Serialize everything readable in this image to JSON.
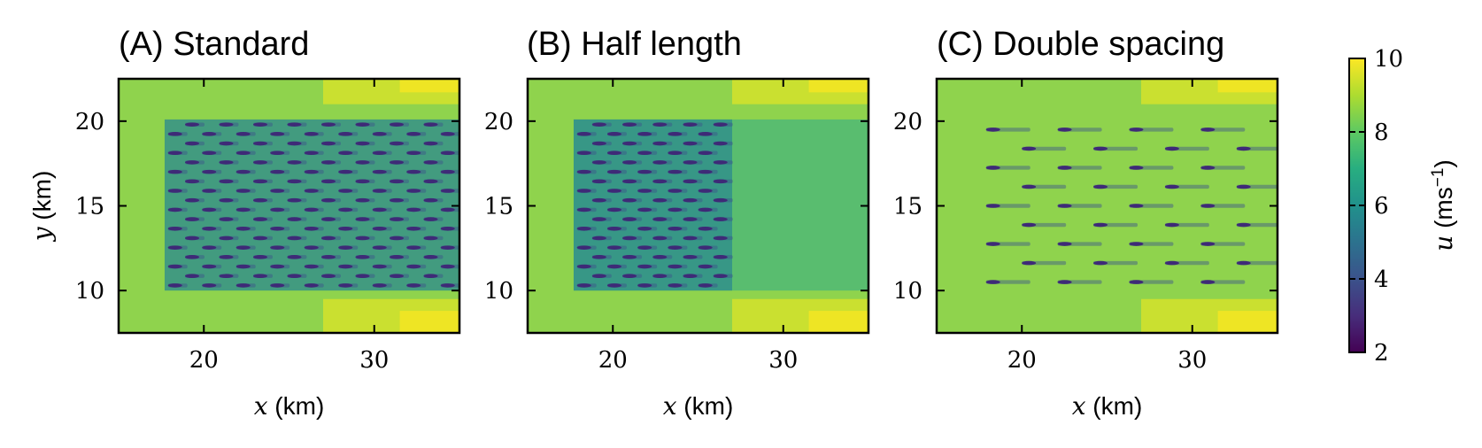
{
  "chart_data": [
    {
      "type": "heatmap",
      "title": "(A) Standard",
      "xlabel_var": "x",
      "xlabel_unit": " (km)",
      "ylabel_var": "y",
      "ylabel_unit": " (km)",
      "xlim": [
        15,
        35
      ],
      "ylim": [
        7.5,
        22.5
      ],
      "xticks": [
        20,
        30
      ],
      "yticks": [
        10,
        15,
        20
      ],
      "layout": "standard",
      "turbine_columns": 9,
      "turbine_rows": 18,
      "turbine_x_range": [
        18,
        35
      ],
      "turbine_y_range": [
        10.3,
        19.8
      ],
      "wake_recovery": "low",
      "show_ylabel": true
    },
    {
      "type": "heatmap",
      "title": "(B) Half length",
      "xlabel_var": "x",
      "xlabel_unit": " (km)",
      "ylabel_var": "",
      "ylabel_unit": "",
      "xlim": [
        15,
        35
      ],
      "ylim": [
        7.5,
        22.5
      ],
      "xticks": [
        20,
        30
      ],
      "yticks": [
        10,
        15,
        20
      ],
      "layout": "half",
      "turbine_columns": 5,
      "turbine_rows": 18,
      "turbine_x_range": [
        18,
        26
      ],
      "turbine_y_range": [
        10.3,
        19.8
      ],
      "wake_recovery": "medium",
      "show_ylabel": false
    },
    {
      "type": "heatmap",
      "title": "(C) Double spacing",
      "xlabel_var": "x",
      "xlabel_unit": " (km)",
      "ylabel_var": "",
      "ylabel_unit": "",
      "xlim": [
        15,
        35
      ],
      "ylim": [
        7.5,
        22.5
      ],
      "xticks": [
        20,
        30
      ],
      "yticks": [
        10,
        15,
        20
      ],
      "layout": "double",
      "turbine_columns": 5,
      "turbine_rows": 9,
      "turbine_x_range": [
        18,
        35
      ],
      "turbine_y_range": [
        10.5,
        19.5
      ],
      "wake_recovery": "high",
      "show_ylabel": false
    }
  ],
  "colorbar": {
    "label_var": "u",
    "label_unit": " (ms",
    "label_exp": "−1",
    "label_close": ")",
    "min": 2,
    "max": 10,
    "ticks": [
      2,
      4,
      6,
      8,
      10
    ],
    "colormap": "viridis",
    "colors": [
      "#440154",
      "#3b528b",
      "#21918c",
      "#5ec962",
      "#fde725"
    ]
  }
}
